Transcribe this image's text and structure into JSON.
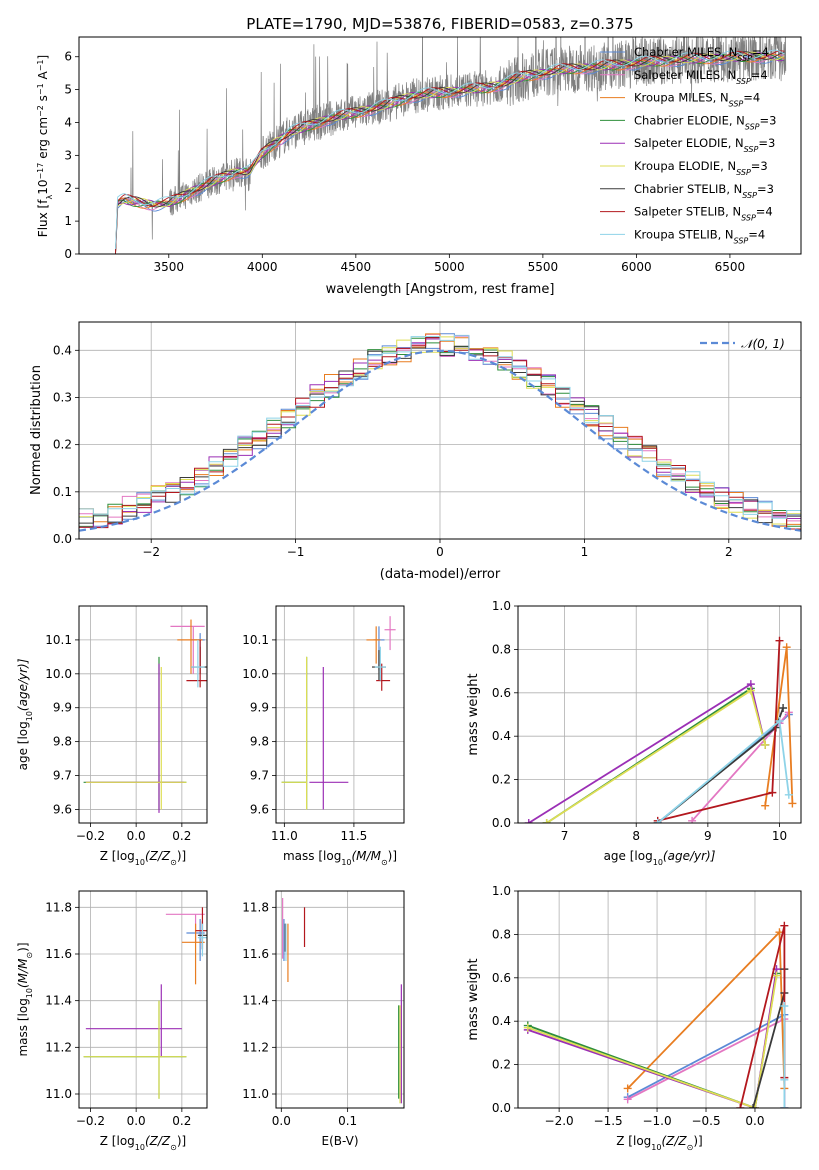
{
  "figure": {
    "title": "PLATE=1790, MJD=53876, FIBERID=0583, z=0.375",
    "legend_labels": [
      [
        "Chabrier MILES, N",
        "SSP",
        "=4"
      ],
      [
        "Salpeter MILES, N",
        "SSP",
        "=4"
      ],
      [
        "Kroupa MILES, N",
        "SSP",
        "=4"
      ],
      [
        "Chabrier ELODIE, N",
        "SSP",
        "=3"
      ],
      [
        "Salpeter ELODIE, N",
        "SSP",
        "=3"
      ],
      [
        "Kroupa ELODIE, N",
        "SSP",
        "=3"
      ],
      [
        "Chabrier STELIB, N",
        "SSP",
        "=3"
      ],
      [
        "Salpeter STELIB, N",
        "SSP",
        "=4"
      ],
      [
        "Kroupa STELIB, N",
        "SSP",
        "=4"
      ]
    ],
    "model_colors": [
      "#5b8ad6",
      "#e377c2",
      "#e87d21",
      "#2f8f3c",
      "#9b2fb5",
      "#dede55",
      "#3a3a3a",
      "#b3181e",
      "#8ed3e8"
    ],
    "data_color": "#808080",
    "normal_color": "#5b8ad6",
    "normal_label": "𝒩(0, 1)"
  },
  "chart_data": [
    {
      "id": "spectrum",
      "type": "line",
      "xlabel": "wavelength [Angstrom, rest frame]",
      "ylabel_parts": [
        "Flux [f",
        "λ",
        "10",
        "−17",
        " erg cm",
        "−2",
        " s",
        "−1",
        " A",
        "−1",
        "]"
      ],
      "xlim": [
        3020,
        6880
      ],
      "ylim": [
        0,
        6.6
      ],
      "xticks": [
        3500,
        4000,
        4500,
        5000,
        5500,
        6000,
        6500
      ],
      "yticks": [
        0,
        1,
        2,
        3,
        4,
        5,
        6
      ],
      "model_continuum": {
        "x": [
          3215,
          3225,
          3260,
          3300,
          3360,
          3420,
          3500,
          3560,
          3620,
          3700,
          3780,
          3860,
          3930,
          3990,
          4050,
          4150,
          4250,
          4350,
          4500,
          4650,
          4800,
          4950,
          5100,
          5200,
          5300,
          5400,
          5500,
          5600,
          5800,
          6000,
          6200,
          6400,
          6600,
          6800
        ],
        "y": [
          0.0,
          1.55,
          1.65,
          1.6,
          1.55,
          1.5,
          1.55,
          1.7,
          1.9,
          2.1,
          2.3,
          2.5,
          2.5,
          3.0,
          3.3,
          3.7,
          3.9,
          4.1,
          4.3,
          4.5,
          4.8,
          4.9,
          5.0,
          5.05,
          5.2,
          5.4,
          5.5,
          5.6,
          5.7,
          5.8,
          5.9,
          5.95,
          6.0,
          6.0
        ]
      },
      "data_start": 3215,
      "data_end": 6800,
      "gap": [
        3940,
        3990
      ]
    },
    {
      "id": "residual_histogram",
      "type": "histogram",
      "xlabel": "(data-model)/error",
      "ylabel": "Normed distribution",
      "xlim": [
        -2.5,
        2.5
      ],
      "ylim": [
        0,
        0.46
      ],
      "xticks": [
        -2,
        -1,
        0,
        1,
        2
      ],
      "yticks": [
        0.0,
        0.1,
        0.2,
        0.3,
        0.4
      ],
      "bin_width": 0.1,
      "normal_pdf": {
        "mean": 0,
        "sigma": 1
      }
    },
    {
      "id": "age_vs_Z",
      "type": "scatter",
      "xlabel_parts": [
        "Z [log",
        "10",
        "(Z/Z",
        "⊙",
        ")]"
      ],
      "ylabel_parts": [
        "age  [log",
        "10",
        "(age/yr)]"
      ],
      "xlim": [
        -0.25,
        0.31
      ],
      "ylim": [
        9.56,
        10.2
      ],
      "xticks": [
        -0.2,
        0.0,
        0.2
      ],
      "yticks": [
        9.6,
        9.7,
        9.8,
        9.9,
        10.0,
        10.1
      ],
      "points": [
        {
          "model": 0,
          "x": 0.28,
          "y": 10.1,
          "xerr": [
            0.04,
            0.02
          ],
          "yerr": [
            0.08,
            0.02
          ]
        },
        {
          "model": 1,
          "x": 0.25,
          "y": 10.14,
          "xerr": [
            0.1,
            0.05
          ],
          "yerr": [
            0.14,
            0.0
          ]
        },
        {
          "model": 2,
          "x": 0.24,
          "y": 10.1,
          "xerr": [
            0.06,
            0.05
          ],
          "yerr": [
            0.1,
            0.06
          ]
        },
        {
          "model": 3,
          "x": 0.1,
          "y": 9.68,
          "xerr": [
            0.33,
            0.12
          ],
          "yerr": [
            0.08,
            0.37
          ]
        },
        {
          "model": 4,
          "x": 0.1,
          "y": 9.68,
          "xerr": [
            0.32,
            0.11
          ],
          "yerr": [
            0.09,
            0.35
          ]
        },
        {
          "model": 5,
          "x": 0.11,
          "y": 9.68,
          "xerr": [
            0.33,
            0.11
          ],
          "yerr": [
            0.08,
            0.34
          ]
        },
        {
          "model": 6,
          "x": 0.28,
          "y": 10.02,
          "xerr": [
            0.04,
            0.03
          ],
          "yerr": [
            0.02,
            0.06
          ]
        },
        {
          "model": 7,
          "x": 0.28,
          "y": 9.98,
          "xerr": [
            0.06,
            0.03
          ],
          "yerr": [
            0.02,
            0.12
          ]
        },
        {
          "model": 8,
          "x": 0.27,
          "y": 10.02,
          "xerr": [
            0.03,
            0.03
          ],
          "yerr": [
            0.06,
            0.08
          ]
        }
      ]
    },
    {
      "id": "age_vs_mass",
      "type": "scatter",
      "xlabel_parts": [
        "mass [log",
        "10",
        "(M/M",
        "⊙",
        ")]"
      ],
      "ylabel_parts": [],
      "xlim": [
        10.94,
        11.86
      ],
      "ylim": [
        9.56,
        10.2
      ],
      "xticks": [
        11.0,
        11.5
      ],
      "yticks": [
        9.6,
        9.7,
        9.8,
        9.9,
        10.0,
        10.1
      ],
      "points": [
        {
          "model": 0,
          "x": 11.68,
          "y": 10.1,
          "xerr": [
            0.04,
            0.04
          ],
          "yerr": [
            0.09,
            0.04
          ]
        },
        {
          "model": 1,
          "x": 11.76,
          "y": 10.13,
          "xerr": [
            0.04,
            0.04
          ],
          "yerr": [
            0.06,
            0.04
          ]
        },
        {
          "model": 2,
          "x": 11.66,
          "y": 10.1,
          "xerr": [
            0.07,
            0.03
          ],
          "yerr": [
            0.07,
            0.04
          ]
        },
        {
          "model": 3,
          "x": 11.16,
          "y": 9.68,
          "xerr": [
            0.18,
            0.0
          ],
          "yerr": [
            0.08,
            0.37
          ]
        },
        {
          "model": 4,
          "x": 11.28,
          "y": 9.68,
          "xerr": [
            0.1,
            0.18
          ],
          "yerr": [
            0.08,
            0.34
          ]
        },
        {
          "model": 5,
          "x": 11.16,
          "y": 9.68,
          "xerr": [
            0.18,
            0.0
          ],
          "yerr": [
            0.08,
            0.37
          ]
        },
        {
          "model": 6,
          "x": 11.68,
          "y": 10.02,
          "xerr": [
            0.05,
            0.05
          ],
          "yerr": [
            0.04,
            0.05
          ]
        },
        {
          "model": 7,
          "x": 11.7,
          "y": 9.98,
          "xerr": [
            0.04,
            0.06
          ],
          "yerr": [
            0.03,
            0.05
          ]
        },
        {
          "model": 8,
          "x": 11.69,
          "y": 10.02,
          "xerr": [
            0.04,
            0.04
          ],
          "yerr": [
            0.04,
            0.06
          ]
        }
      ]
    },
    {
      "id": "weight_vs_age",
      "type": "line",
      "xlabel_parts": [
        "age  [log",
        "10",
        "(age/yr)]"
      ],
      "ylabel": "mass weight",
      "xlim": [
        6.35,
        10.3
      ],
      "ylim": [
        0,
        1.0
      ],
      "xticks": [
        7,
        8,
        9,
        10
      ],
      "yticks": [
        0.0,
        0.2,
        0.4,
        0.6,
        0.8,
        1.0
      ],
      "series": [
        {
          "model": 0,
          "x": [
            8.3,
            10.0,
            10.13
          ],
          "y": [
            0.0,
            0.46,
            0.5
          ]
        },
        {
          "model": 1,
          "x": [
            8.78,
            10.0,
            10.13
          ],
          "y": [
            0.01,
            0.46,
            0.51
          ]
        },
        {
          "model": 2,
          "x": [
            9.8,
            10.1,
            10.18
          ],
          "y": [
            0.08,
            0.81,
            0.09
          ]
        },
        {
          "model": 3,
          "x": [
            6.75,
            9.6,
            9.8
          ],
          "y": [
            0.0,
            0.62,
            0.36
          ]
        },
        {
          "model": 4,
          "x": [
            6.5,
            9.6,
            9.8
          ],
          "y": [
            0.0,
            0.64,
            0.36
          ]
        },
        {
          "model": 5,
          "x": [
            6.75,
            9.6,
            9.8
          ],
          "y": [
            0.0,
            0.61,
            0.36
          ]
        },
        {
          "model": 6,
          "x": [
            8.3,
            9.95,
            10.05
          ],
          "y": [
            0.0,
            0.44,
            0.53
          ]
        },
        {
          "model": 7,
          "x": [
            8.3,
            9.9,
            10.0
          ],
          "y": [
            0.01,
            0.14,
            0.84
          ]
        },
        {
          "model": 8,
          "x": [
            8.3,
            10.0,
            10.13
          ],
          "y": [
            0.0,
            0.47,
            0.13
          ]
        }
      ]
    },
    {
      "id": "mass_vs_Z",
      "type": "scatter",
      "xlabel_parts": [
        "Z [log",
        "10",
        "(Z/Z",
        "⊙",
        ")]"
      ],
      "ylabel_parts": [
        "mass [log",
        "10",
        "(M/M",
        "⊙",
        ")]"
      ],
      "xlim": [
        -0.25,
        0.31
      ],
      "ylim": [
        10.94,
        11.87
      ],
      "xticks": [
        -0.2,
        0.0,
        0.2
      ],
      "yticks": [
        11.0,
        11.2,
        11.4,
        11.6,
        11.8
      ],
      "points": [
        {
          "model": 0,
          "x": 0.28,
          "y": 11.69,
          "xerr": [
            0.06,
            0.02
          ],
          "yerr": [
            0.12,
            0.06
          ]
        },
        {
          "model": 1,
          "x": 0.26,
          "y": 11.77,
          "xerr": [
            0.13,
            0.04
          ],
          "yerr": [
            0.12,
            0.0
          ]
        },
        {
          "model": 2,
          "x": 0.26,
          "y": 11.65,
          "xerr": [
            0.06,
            0.04
          ],
          "yerr": [
            0.18,
            0.08
          ]
        },
        {
          "model": 3,
          "x": 0.1,
          "y": 11.16,
          "xerr": [
            0.33,
            0.12
          ],
          "yerr": [
            0.18,
            0.24
          ]
        },
        {
          "model": 4,
          "x": 0.11,
          "y": 11.28,
          "xerr": [
            0.33,
            0.09
          ],
          "yerr": [
            0.12,
            0.19
          ]
        },
        {
          "model": 5,
          "x": 0.1,
          "y": 11.16,
          "xerr": [
            0.33,
            0.12
          ],
          "yerr": [
            0.18,
            0.24
          ]
        },
        {
          "model": 6,
          "x": 0.29,
          "y": 11.68,
          "xerr": [
            0.02,
            0.02
          ],
          "yerr": [
            0.06,
            0.06
          ]
        },
        {
          "model": 7,
          "x": 0.29,
          "y": 11.7,
          "xerr": [
            0.03,
            0.02
          ],
          "yerr": [
            0.08,
            0.1
          ]
        },
        {
          "model": 8,
          "x": 0.29,
          "y": 11.67,
          "xerr": [
            0.02,
            0.02
          ],
          "yerr": [
            0.08,
            0.06
          ]
        }
      ]
    },
    {
      "id": "mass_vs_EBV",
      "type": "scatter",
      "xlabel_parts": [
        "E(B-V)"
      ],
      "ylabel_parts": [],
      "xlim": [
        -0.008,
        0.185
      ],
      "ylim": [
        10.94,
        11.87
      ],
      "xticks": [
        0.0,
        0.1
      ],
      "yticks": [
        11.0,
        11.2,
        11.4,
        11.6,
        11.8
      ],
      "points": [
        {
          "model": 0,
          "x": 0.004,
          "y": 11.69,
          "xerr": [
            0,
            0
          ],
          "yerr": [
            0.12,
            0.06
          ]
        },
        {
          "model": 1,
          "x": 0.002,
          "y": 11.73,
          "xerr": [
            0,
            0
          ],
          "yerr": [
            0.15,
            0.11
          ]
        },
        {
          "model": 2,
          "x": 0.01,
          "y": 11.6,
          "xerr": [
            0,
            0
          ],
          "yerr": [
            0.12,
            0.13
          ]
        },
        {
          "model": 3,
          "x": 0.177,
          "y": 11.16,
          "xerr": [
            0,
            0
          ],
          "yerr": [
            0.18,
            0.22
          ]
        },
        {
          "model": 4,
          "x": 0.181,
          "y": 11.28,
          "xerr": [
            0,
            0
          ],
          "yerr": [
            0.32,
            0.19
          ]
        },
        {
          "model": 5,
          "x": 0.179,
          "y": 11.16,
          "xerr": [
            0,
            0
          ],
          "yerr": [
            0.2,
            0.22
          ]
        },
        {
          "model": 6,
          "x": 0.006,
          "y": 11.68,
          "xerr": [
            0,
            0
          ],
          "yerr": [
            0.07,
            0.05
          ]
        },
        {
          "model": 7,
          "x": 0.035,
          "y": 11.7,
          "xerr": [
            0,
            0
          ],
          "yerr": [
            0.07,
            0.1
          ]
        },
        {
          "model": 8,
          "x": 0.007,
          "y": 11.67,
          "xerr": [
            0,
            0
          ],
          "yerr": [
            0.1,
            0.06
          ]
        }
      ]
    },
    {
      "id": "weight_vs_Z",
      "type": "line",
      "xlabel_parts": [
        "Z [log",
        "10",
        "(Z/Z",
        "⊙",
        ")]"
      ],
      "ylabel": "mass weight",
      "xlim": [
        -2.42,
        0.47
      ],
      "ylim": [
        0,
        1.0
      ],
      "xticks": [
        -2.0,
        -1.5,
        -1.0,
        -0.5,
        0.0
      ],
      "yticks": [
        0.0,
        0.2,
        0.4,
        0.6,
        0.8,
        1.0
      ],
      "series": [
        {
          "model": 0,
          "x": [
            -1.3,
            0.3,
            0.3
          ],
          "y": [
            0.05,
            0.43,
            0.0
          ]
        },
        {
          "model": 1,
          "x": [
            -1.3,
            0.3,
            0.3
          ],
          "y": [
            0.04,
            0.41,
            0.0
          ]
        },
        {
          "model": 2,
          "x": [
            -1.3,
            0.25,
            0.3
          ],
          "y": [
            0.09,
            0.81,
            0.09
          ]
        },
        {
          "model": 3,
          "x": [
            -2.32,
            0.0,
            0.22
          ],
          "y": [
            0.38,
            0.0,
            0.62
          ]
        },
        {
          "model": 4,
          "x": [
            -2.32,
            0.0,
            0.22
          ],
          "y": [
            0.36,
            0.0,
            0.64
          ]
        },
        {
          "model": 5,
          "x": [
            -2.32,
            0.0,
            0.22
          ],
          "y": [
            0.37,
            0.0,
            0.61
          ]
        },
        {
          "model": 6,
          "x": [
            -0.02,
            0.3,
            0.3
          ],
          "y": [
            0.0,
            0.53,
            0.64
          ]
        },
        {
          "model": 7,
          "x": [
            -0.15,
            0.3,
            0.3
          ],
          "y": [
            0.0,
            0.84,
            0.14
          ]
        },
        {
          "model": 8,
          "x": [
            0.3,
            0.3,
            0.3
          ],
          "y": [
            0.0,
            0.47,
            0.13
          ]
        }
      ]
    }
  ]
}
